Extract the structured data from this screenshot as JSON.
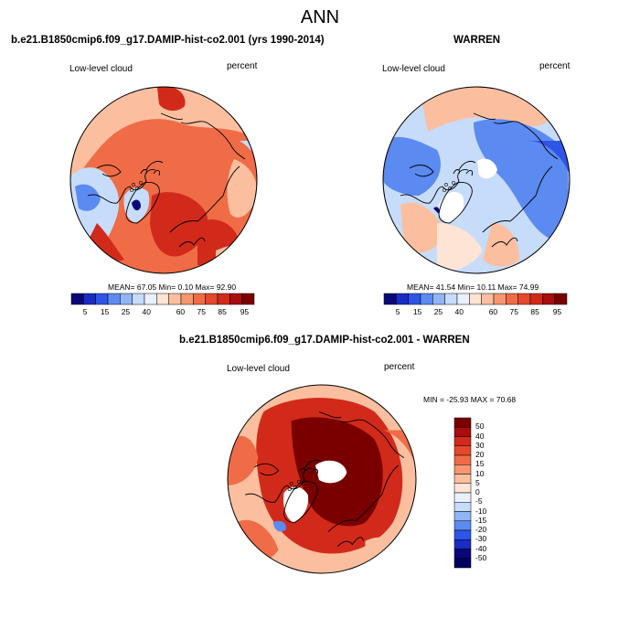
{
  "title": "ANN",
  "panels": [
    {
      "id": "model",
      "title": "b.e21.B1850cmip6.f09_g17.DAMIP-hist-co2.001 (yrs 1990-2014)",
      "left_label": "Low-level cloud",
      "right_label": "percent",
      "stats": "MEAN=  67.05  Min=   0.10  Max=  92.90",
      "field_description": "mostly 60-90% low cloud, highest over North Atlantic/Barents, lower (blue) over Canada, Siberia interior and central Greenland"
    },
    {
      "id": "obs",
      "title": "WARREN",
      "left_label": "Low-level cloud",
      "right_label": "percent",
      "stats": "MEAN=  41.54  Min=  10.11  Max=  74.99",
      "field_description": "mostly 15-40% over Siberia, Arctic Ocean and North America; 40-75% over North Atlantic and Pacific"
    },
    {
      "id": "diff",
      "title": "b.e21.B1850cmip6.f09_g17.DAMIP-hist-co2.001 - WARREN",
      "left_label": "Low-level cloud",
      "right_label": "percent",
      "stats": "MIN = -25.93 MAX =  70.68",
      "field_description": "model minus observations mostly positive 20-50+, dark red over Siberia/Arctic Ocean; missing (white) over pole and Greenland"
    }
  ],
  "chart_data": [
    {
      "type": "heatmap",
      "projection": "north polar stereographic",
      "title": "b.e21.B1850cmip6.f09_g17.DAMIP-hist-co2.001 (yrs 1990-2014)",
      "variable": "Low-level cloud",
      "units": "percent",
      "mean": 67.05,
      "min": 0.1,
      "max": 92.9,
      "colorbar_ticks": [
        "5",
        "15",
        "25",
        "40",
        "60",
        "75",
        "85",
        "95"
      ],
      "colorbar_colors": [
        "#08087a",
        "#1a2cc4",
        "#2f55e6",
        "#5b8af0",
        "#8fb5f5",
        "#c6dcfa",
        "#e9f1fc",
        "#fde4d4",
        "#fbbf9f",
        "#f79670",
        "#f06c46",
        "#e5482c",
        "#d22a1a",
        "#a80e0c",
        "#7a0000"
      ]
    },
    {
      "type": "heatmap",
      "projection": "north polar stereographic",
      "title": "WARREN",
      "variable": "Low-level cloud",
      "units": "percent",
      "mean": 41.54,
      "min": 10.11,
      "max": 74.99,
      "colorbar_ticks": [
        "5",
        "15",
        "25",
        "40",
        "60",
        "75",
        "85",
        "95"
      ],
      "colorbar_colors": [
        "#08087a",
        "#1a2cc4",
        "#2f55e6",
        "#5b8af0",
        "#8fb5f5",
        "#c6dcfa",
        "#e9f1fc",
        "#fde4d4",
        "#fbbf9f",
        "#f79670",
        "#f06c46",
        "#e5482c",
        "#d22a1a",
        "#a80e0c",
        "#7a0000"
      ]
    },
    {
      "type": "heatmap",
      "projection": "north polar stereographic",
      "title": "b.e21.B1850cmip6.f09_g17.DAMIP-hist-co2.001 - WARREN",
      "variable": "Low-level cloud",
      "units": "percent",
      "min": -25.93,
      "max": 70.68,
      "colorbar_ticks": [
        "50",
        "40",
        "30",
        "20",
        "15",
        "10",
        "5",
        "0",
        "-5",
        "-10",
        "-15",
        "-20",
        "-30",
        "-40",
        "-50"
      ],
      "colorbar_colors": [
        "#7a0000",
        "#a80e0c",
        "#d22a1a",
        "#e5482c",
        "#f06c46",
        "#f79670",
        "#fbbf9f",
        "#fde4d4",
        "#e9f1fc",
        "#c6dcfa",
        "#8fb5f5",
        "#5b8af0",
        "#2f55e6",
        "#1a2cc4",
        "#08087a",
        "#000060"
      ]
    }
  ],
  "colors": {
    "deep_red": "#7a0000",
    "red": "#d22a1a",
    "orange": "#f06c46",
    "light_orange": "#fbbf9f",
    "pale": "#fde4d4",
    "light_blue": "#c6dcfa",
    "blue": "#5b8af0",
    "deep_blue": "#08087a",
    "missing": "#ffffff",
    "coast": "#000000"
  }
}
